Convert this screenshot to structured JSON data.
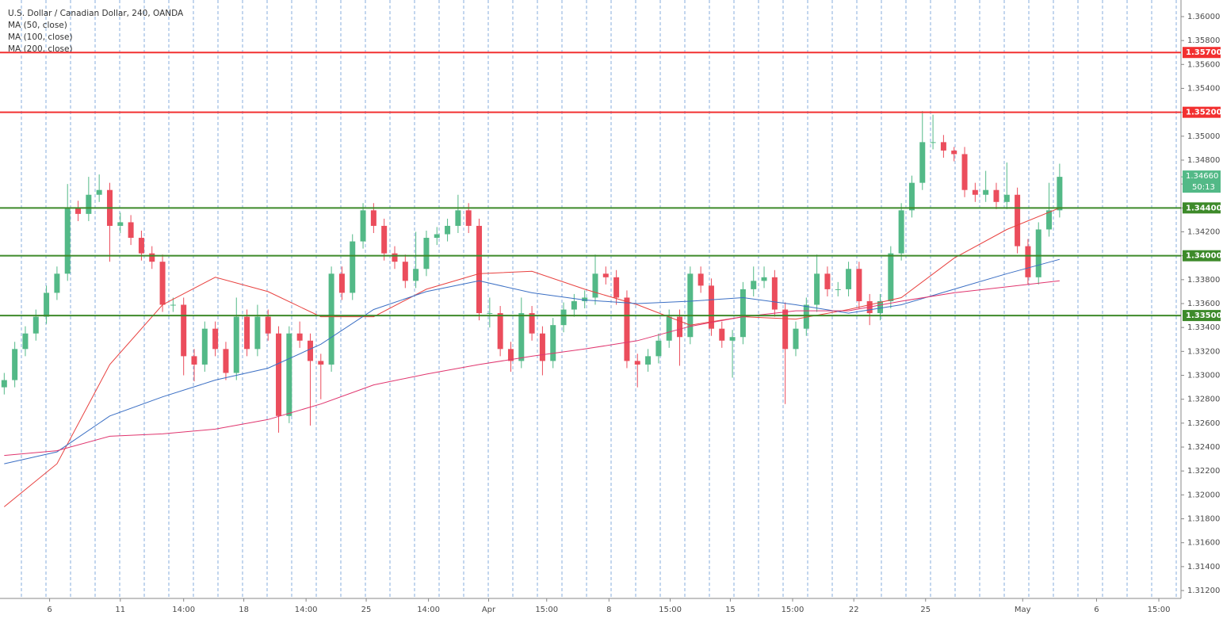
{
  "chart_data": {
    "type": "candlestick",
    "title": "U.S. Dollar / Canadian Dollar, 240, OANDA",
    "up_color": "#53b987",
    "down_color": "#eb4d5c",
    "xlim": [
      -0.4,
      111.5
    ],
    "xticks": [
      {
        "value": 4.3,
        "label": "6"
      },
      {
        "value": 11,
        "label": "11"
      },
      {
        "value": 17,
        "label": "14:00"
      },
      {
        "value": 22.7,
        "label": "18"
      },
      {
        "value": 28.6,
        "label": "14:00"
      },
      {
        "value": 34.3,
        "label": "25"
      },
      {
        "value": 40.2,
        "label": "14:00"
      },
      {
        "value": 45.9,
        "label": "Apr"
      },
      {
        "value": 51.4,
        "label": "15:00"
      },
      {
        "value": 57.3,
        "label": "8"
      },
      {
        "value": 63.1,
        "label": "15:00"
      },
      {
        "value": 68.8,
        "label": "15"
      },
      {
        "value": 74.7,
        "label": "15:00"
      },
      {
        "value": 80.5,
        "label": "22"
      },
      {
        "value": 87.3,
        "label": "25"
      },
      {
        "value": 96.5,
        "label": "May"
      },
      {
        "value": 103.5,
        "label": "6"
      },
      {
        "value": 109.4,
        "label": "15:00"
      }
    ],
    "ylim": [
      1.31134,
      1.36139
    ],
    "yticks": [
      {
        "value": 1.312,
        "label": "1.31200"
      },
      {
        "value": 1.314,
        "label": "1.31400"
      },
      {
        "value": 1.316,
        "label": "1.31600"
      },
      {
        "value": 1.318,
        "label": "1.31800"
      },
      {
        "value": 1.32,
        "label": "1.32000"
      },
      {
        "value": 1.322,
        "label": "1.32200"
      },
      {
        "value": 1.324,
        "label": "1.32400"
      },
      {
        "value": 1.326,
        "label": "1.32600"
      },
      {
        "value": 1.328,
        "label": "1.32800"
      },
      {
        "value": 1.33,
        "label": "1.33000"
      },
      {
        "value": 1.332,
        "label": "1.33200"
      },
      {
        "value": 1.334,
        "label": "1.33400"
      },
      {
        "value": 1.336,
        "label": "1.33600"
      },
      {
        "value": 1.338,
        "label": "1.33800"
      },
      {
        "value": 1.34,
        "label": "1.34000"
      },
      {
        "value": 1.342,
        "label": "1.34200"
      },
      {
        "value": 1.344,
        "label": "1.34400"
      },
      {
        "value": 1.346,
        "label": "1.34600"
      },
      {
        "value": 1.348,
        "label": "1.34800"
      },
      {
        "value": 1.35,
        "label": "1.35000"
      },
      {
        "value": 1.352,
        "label": "1.35200"
      },
      {
        "value": 1.354,
        "label": "1.35400"
      },
      {
        "value": 1.356,
        "label": "1.35600"
      },
      {
        "value": 1.358,
        "label": "1.35800"
      },
      {
        "value": 1.36,
        "label": "1.36000"
      }
    ],
    "open": [
      1.329,
      1.3296,
      1.3322,
      1.3335,
      1.3349,
      1.3369,
      1.3385,
      1.344,
      1.3435,
      1.3451,
      1.3455,
      1.3425,
      1.3428,
      1.3415,
      1.3402,
      1.3395,
      1.3359,
      1.3359,
      1.3316,
      1.3309,
      1.3339,
      1.3322,
      1.3302,
      1.3349,
      1.3322,
      1.3349,
      1.3335,
      1.3266,
      1.3335,
      1.3329,
      1.3312,
      1.3309,
      1.3385,
      1.3369,
      1.3412,
      1.3438,
      1.3425,
      1.3402,
      1.3395,
      1.3379,
      1.3389,
      1.3415,
      1.3418,
      1.3425,
      1.3438,
      1.3425,
      1.3352,
      1.3352,
      1.3322,
      1.3312,
      1.3352,
      1.3335,
      1.3312,
      1.3342,
      1.3355,
      1.3362,
      1.3365,
      1.3385,
      1.3382,
      1.3365,
      1.3312,
      1.3309,
      1.3316,
      1.3329,
      1.3349,
      1.3332,
      1.3385,
      1.3375,
      1.3339,
      1.3329,
      1.3332,
      1.3372,
      1.3379,
      1.3382,
      1.3355,
      1.3322,
      1.3339,
      1.3359,
      1.3385,
      1.3372,
      1.3372,
      1.3389,
      1.3362,
      1.3352,
      1.3362,
      1.3402,
      1.3438,
      1.3461,
      1.3495,
      1.3495,
      1.3488,
      1.3485,
      1.3455,
      1.3451,
      1.3455,
      1.3445,
      1.3451,
      1.3408,
      1.3382,
      1.3422,
      1.3438
    ],
    "high": [
      1.3302,
      1.3328,
      1.3341,
      1.3355,
      1.3375,
      1.3391,
      1.346,
      1.3446,
      1.3466,
      1.3468,
      1.3461,
      1.3436,
      1.3434,
      1.3421,
      1.3408,
      1.3401,
      1.3365,
      1.3365,
      1.3322,
      1.3345,
      1.3345,
      1.3328,
      1.3365,
      1.3355,
      1.3359,
      1.3355,
      1.3341,
      1.3341,
      1.3345,
      1.3335,
      1.3318,
      1.3391,
      1.3391,
      1.3418,
      1.3444,
      1.3444,
      1.3431,
      1.3408,
      1.3401,
      1.342,
      1.3421,
      1.3424,
      1.3431,
      1.3451,
      1.3444,
      1.3431,
      1.3365,
      1.3358,
      1.3328,
      1.3365,
      1.3358,
      1.3341,
      1.3348,
      1.3361,
      1.3368,
      1.3371,
      1.3401,
      1.3391,
      1.3388,
      1.3371,
      1.3318,
      1.3322,
      1.3335,
      1.3355,
      1.3355,
      1.3391,
      1.3391,
      1.3381,
      1.3345,
      1.3338,
      1.3378,
      1.3391,
      1.3391,
      1.3388,
      1.3361,
      1.3345,
      1.3365,
      1.3401,
      1.3391,
      1.3378,
      1.3395,
      1.3395,
      1.3368,
      1.3368,
      1.3408,
      1.3444,
      1.3467,
      1.3521,
      1.3518,
      1.3501,
      1.3491,
      1.3491,
      1.3461,
      1.3471,
      1.3461,
      1.3478,
      1.3457,
      1.3414,
      1.3428,
      1.3461,
      1.3477
    ],
    "low": [
      1.3284,
      1.329,
      1.3316,
      1.3329,
      1.3343,
      1.3363,
      1.3379,
      1.3429,
      1.3429,
      1.3445,
      1.3395,
      1.3419,
      1.3409,
      1.3396,
      1.3389,
      1.3353,
      1.3353,
      1.33,
      1.3295,
      1.3303,
      1.3316,
      1.3296,
      1.3296,
      1.3316,
      1.3316,
      1.3329,
      1.3252,
      1.326,
      1.3323,
      1.3258,
      1.328,
      1.3303,
      1.3363,
      1.3363,
      1.3406,
      1.3419,
      1.3396,
      1.3389,
      1.3373,
      1.3373,
      1.3383,
      1.3409,
      1.3412,
      1.3419,
      1.3419,
      1.3346,
      1.334,
      1.3316,
      1.3303,
      1.3306,
      1.3329,
      1.33,
      1.3306,
      1.3336,
      1.3349,
      1.3356,
      1.3359,
      1.3376,
      1.3359,
      1.3306,
      1.329,
      1.3303,
      1.331,
      1.3323,
      1.3308,
      1.3326,
      1.3369,
      1.3333,
      1.3323,
      1.3298,
      1.3326,
      1.3366,
      1.3373,
      1.3349,
      1.3276,
      1.3316,
      1.3333,
      1.3353,
      1.3366,
      1.3366,
      1.3366,
      1.3356,
      1.3342,
      1.3346,
      1.3356,
      1.3396,
      1.3432,
      1.3455,
      1.3489,
      1.3482,
      1.3479,
      1.3449,
      1.3445,
      1.3445,
      1.3439,
      1.3439,
      1.3402,
      1.3376,
      1.3376,
      1.3416,
      1.3432
    ],
    "close": [
      1.3296,
      1.3322,
      1.3335,
      1.3349,
      1.3369,
      1.3385,
      1.344,
      1.3435,
      1.3451,
      1.3455,
      1.3425,
      1.3428,
      1.3415,
      1.3402,
      1.3395,
      1.3359,
      1.3359,
      1.3316,
      1.3309,
      1.3339,
      1.3322,
      1.3302,
      1.3349,
      1.3322,
      1.3349,
      1.3335,
      1.3266,
      1.3335,
      1.3329,
      1.3312,
      1.3309,
      1.3385,
      1.3369,
      1.3412,
      1.3438,
      1.3425,
      1.3402,
      1.3395,
      1.3379,
      1.3389,
      1.3415,
      1.3418,
      1.3425,
      1.3438,
      1.3425,
      1.3352,
      1.3352,
      1.3322,
      1.3312,
      1.3352,
      1.3335,
      1.3312,
      1.3342,
      1.3355,
      1.3362,
      1.3365,
      1.3385,
      1.3382,
      1.3365,
      1.3312,
      1.3309,
      1.3316,
      1.3329,
      1.3349,
      1.3332,
      1.3385,
      1.3375,
      1.3339,
      1.3329,
      1.3332,
      1.3372,
      1.3379,
      1.3382,
      1.3355,
      1.3322,
      1.3339,
      1.3359,
      1.3385,
      1.3372,
      1.3372,
      1.3389,
      1.3362,
      1.3352,
      1.3362,
      1.3402,
      1.3438,
      1.3461,
      1.3495,
      1.3495,
      1.3488,
      1.3485,
      1.3455,
      1.3451,
      1.3455,
      1.3445,
      1.3451,
      1.3408,
      1.3382,
      1.3422,
      1.3438,
      1.3466
    ],
    "series": [
      {
        "name": "MA (50, close)",
        "color": "#e8413f",
        "x": [
          0,
          5,
          10,
          15,
          20,
          25,
          30,
          35,
          40,
          45,
          50,
          55,
          60,
          65,
          70,
          75,
          80,
          85,
          90,
          95,
          100
        ],
        "values": [
          1.319,
          1.3226,
          1.3309,
          1.3359,
          1.3382,
          1.337,
          1.3349,
          1.3349,
          1.3372,
          1.3385,
          1.3387,
          1.3372,
          1.3359,
          1.3342,
          1.3349,
          1.3347,
          1.3355,
          1.3365,
          1.3398,
          1.3422,
          1.344
        ]
      },
      {
        "name": "MA (100, close)",
        "color": "#3b6fc4",
        "x": [
          0,
          5,
          10,
          15,
          20,
          25,
          30,
          35,
          40,
          45,
          50,
          55,
          60,
          65,
          70,
          75,
          80,
          85,
          90,
          95,
          100
        ],
        "values": [
          1.3226,
          1.3236,
          1.3266,
          1.3282,
          1.3296,
          1.3306,
          1.3326,
          1.3355,
          1.337,
          1.3379,
          1.3369,
          1.3363,
          1.336,
          1.3362,
          1.3365,
          1.3359,
          1.3352,
          1.3359,
          1.3372,
          1.3385,
          1.3397
        ]
      },
      {
        "name": "MA (200, close)",
        "color": "#e0356e",
        "x": [
          0,
          5,
          10,
          15,
          20,
          25,
          30,
          35,
          40,
          45,
          50,
          55,
          60,
          65,
          70,
          75,
          80,
          85,
          90,
          95,
          100
        ],
        "values": [
          1.3233,
          1.3237,
          1.3249,
          1.3251,
          1.3255,
          1.3263,
          1.3276,
          1.3292,
          1.3301,
          1.3309,
          1.3316,
          1.3322,
          1.3329,
          1.3341,
          1.3349,
          1.3354,
          1.3354,
          1.3362,
          1.3369,
          1.3374,
          1.3379
        ]
      }
    ],
    "levels": [
      {
        "value": 1.357,
        "label": "1.35700",
        "color": "#f23030"
      },
      {
        "value": 1.352,
        "label": "1.35200",
        "color": "#f23030"
      },
      {
        "value": 1.344,
        "label": "1.34400",
        "color": "#3d8a2a"
      },
      {
        "value": 1.34,
        "label": "1.34000",
        "color": "#3d8a2a"
      },
      {
        "value": 1.335,
        "label": "1.33500",
        "color": "#3d8a2a"
      }
    ],
    "last_price": {
      "value": 1.3466,
      "label": "1.34660"
    },
    "countdown": "50:13"
  }
}
